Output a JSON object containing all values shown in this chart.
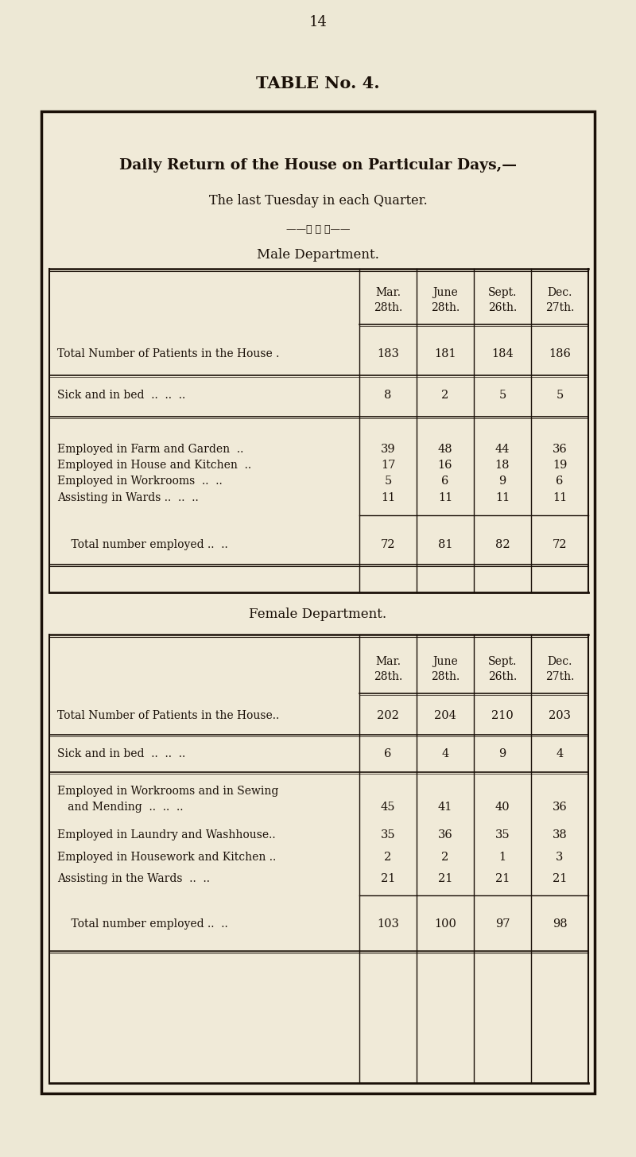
{
  "page_number": "14",
  "table_title": "TABLE No. 4.",
  "box_title_line1": "Daily Return of the House on Particular Days,—",
  "box_title_line2": "The last Tuesday in each Quarter.",
  "ornament": "——★ ✶ ★——",
  "male_dept_header": "Male Department.",
  "female_dept_header": "Female Department.",
  "col_headers_line1": [
    "Mar.",
    "June",
    "Sept.",
    "Dec."
  ],
  "col_headers_line2": [
    "28th.",
    "28th.",
    "26th.",
    "27th."
  ],
  "male_rows": [
    {
      "label": "Total Number of Patients in the House .",
      "values": [
        "183",
        "181",
        "184",
        "186"
      ]
    },
    {
      "label": "Sick and in bed  ..  ..  ..",
      "values": [
        "8",
        "2",
        "5",
        "5"
      ]
    },
    {
      "label": "Employed in Farm and Garden  ..",
      "values": [
        "39",
        "48",
        "44",
        "36"
      ]
    },
    {
      "label": "Employed in House and Kitchen  ..",
      "values": [
        "17",
        "16",
        "18",
        "19"
      ]
    },
    {
      "label": "Employed in Workrooms  ..  ..",
      "values": [
        "5",
        "6",
        "9",
        "6"
      ]
    },
    {
      "label": "Assisting in Wards ..  ..  ..",
      "values": [
        "11",
        "11",
        "11",
        "11"
      ]
    },
    {
      "label": "    Total number employed ..  ..",
      "values": [
        "72",
        "81",
        "82",
        "72"
      ],
      "total": true
    }
  ],
  "female_rows": [
    {
      "label": "Total Number of Patients in the House..",
      "values": [
        "202",
        "204",
        "210",
        "203"
      ]
    },
    {
      "label": "Sick and in bed  ..  ..  ..",
      "values": [
        "6",
        "4",
        "9",
        "4"
      ]
    },
    {
      "label": "Employed in Workrooms and in Sewing",
      "values": [
        "",
        "",
        "",
        ""
      ],
      "no_vals": true
    },
    {
      "label": "   and Mending  ..  ..  ..",
      "values": [
        "45",
        "41",
        "40",
        "36"
      ]
    },
    {
      "label": "Employed in Laundry and Washhouse..",
      "values": [
        "35",
        "36",
        "35",
        "38"
      ]
    },
    {
      "label": "Employed in Housework and Kitchen ..",
      "values": [
        "2",
        "2",
        "1",
        "3"
      ]
    },
    {
      "label": "Assisting in the Wards  ..  ..",
      "values": [
        "21",
        "21",
        "21",
        "21"
      ]
    },
    {
      "label": "    Total number employed ..  ..",
      "values": [
        "103",
        "100",
        "97",
        "98"
      ],
      "total": true
    }
  ],
  "bg_color": "#ede8d5",
  "box_bg_color": "#f0ead8",
  "text_color": "#1a1008",
  "line_color": "#1a1008",
  "font_family": "serif"
}
